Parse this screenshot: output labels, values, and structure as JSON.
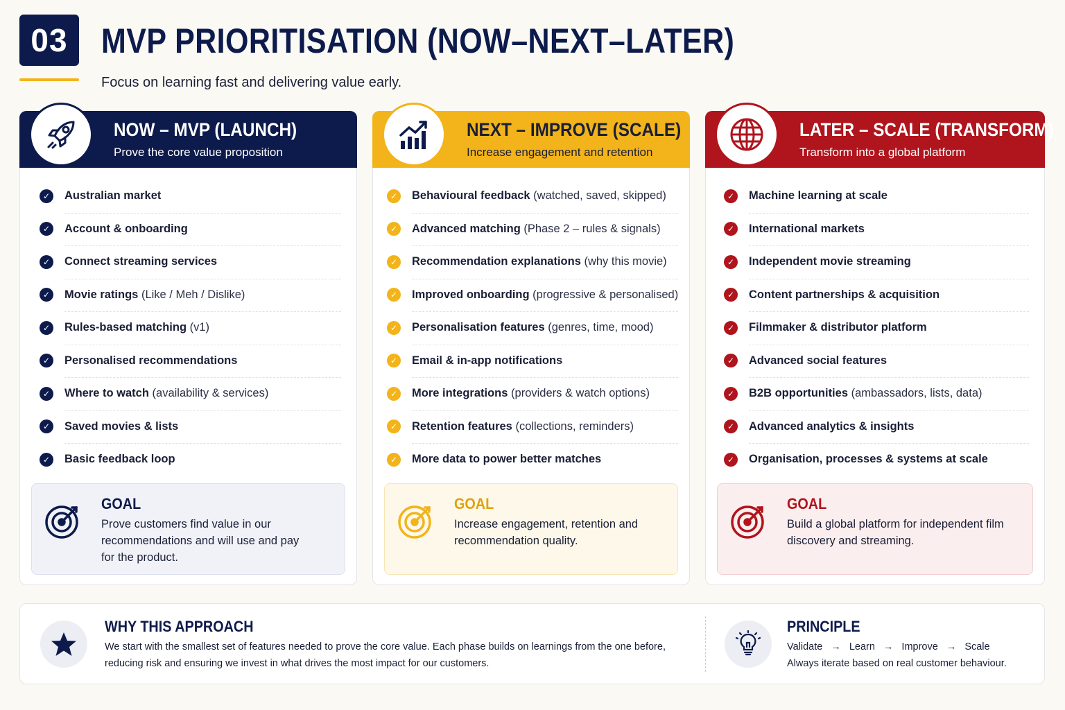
{
  "header": {
    "number": "03",
    "title": "MVP PRIORITISATION (NOW–NEXT–LATER)",
    "subtitle": "Focus on learning fast and delivering value early."
  },
  "colors": {
    "navy": "#0d1b4c",
    "amber": "#f2b41a",
    "red": "#b0141c"
  },
  "columns": [
    {
      "icon": "rocket-icon",
      "title": "NOW – MVP (LAUNCH)",
      "subtitle": "Prove the core value proposition",
      "items": [
        {
          "bold": "Australian market",
          "rest": ""
        },
        {
          "bold": "Account & onboarding",
          "rest": ""
        },
        {
          "bold": "Connect streaming services",
          "rest": ""
        },
        {
          "bold": "Movie ratings",
          "rest": " (Like / Meh / Dislike)"
        },
        {
          "bold": "Rules-based matching",
          "rest": " (v1)"
        },
        {
          "bold": "Personalised recommendations",
          "rest": ""
        },
        {
          "bold": "Where to watch",
          "rest": " (availability & services)"
        },
        {
          "bold": "Saved movies & lists",
          "rest": ""
        },
        {
          "bold": "Basic feedback loop",
          "rest": ""
        }
      ],
      "goal_label": "GOAL",
      "goal_text": "Prove customers find value in our recommendations and will use and pay for the product."
    },
    {
      "icon": "growth-chart-icon",
      "title": "NEXT – IMPROVE (SCALE)",
      "subtitle": "Increase engagement and retention",
      "items": [
        {
          "bold": "Behavioural feedback",
          "rest": " (watched, saved, skipped)"
        },
        {
          "bold": "Advanced matching",
          "rest": " (Phase 2 – rules & signals)"
        },
        {
          "bold": "Recommendation explanations",
          "rest": " (why this movie)"
        },
        {
          "bold": "Improved onboarding",
          "rest": " (progressive & personalised)"
        },
        {
          "bold": "Personalisation features",
          "rest": " (genres, time, mood)"
        },
        {
          "bold": "Email & in-app notifications",
          "rest": ""
        },
        {
          "bold": "More integrations",
          "rest": " (providers & watch options)"
        },
        {
          "bold": "Retention features",
          "rest": " (collections, reminders)"
        },
        {
          "bold": "More data to power better matches",
          "rest": ""
        }
      ],
      "goal_label": "GOAL",
      "goal_text": "Increase engagement, retention and recommendation quality."
    },
    {
      "icon": "globe-icon",
      "title": "LATER – SCALE (TRANSFORM)",
      "subtitle": "Transform into a global platform",
      "items": [
        {
          "bold": "Machine learning at scale",
          "rest": ""
        },
        {
          "bold": "International markets",
          "rest": ""
        },
        {
          "bold": "Independent movie streaming",
          "rest": ""
        },
        {
          "bold": "Content partnerships & acquisition",
          "rest": ""
        },
        {
          "bold": "Filmmaker & distributor platform",
          "rest": ""
        },
        {
          "bold": "Advanced social features",
          "rest": ""
        },
        {
          "bold": "B2B opportunities",
          "rest": " (ambassadors, lists, data)"
        },
        {
          "bold": "Advanced analytics & insights",
          "rest": ""
        },
        {
          "bold": "Organisation, processes & systems at scale",
          "rest": ""
        }
      ],
      "goal_label": "GOAL",
      "goal_text": "Build a global platform for independent film discovery and streaming."
    }
  ],
  "bottom": {
    "why_title": "WHY THIS APPROACH",
    "why_text_1": "We start with the smallest set of features needed to prove the core value. Each phase builds on learnings from the one before,",
    "why_text_2": "reducing risk and ensuring we invest in what drives the most impact for our customers.",
    "principle_title": "PRINCIPLE",
    "flow": [
      "Validate",
      "Learn",
      "Improve",
      "Scale"
    ],
    "flow_arrow": "→",
    "principle_text": "Always iterate based on real customer behaviour."
  }
}
